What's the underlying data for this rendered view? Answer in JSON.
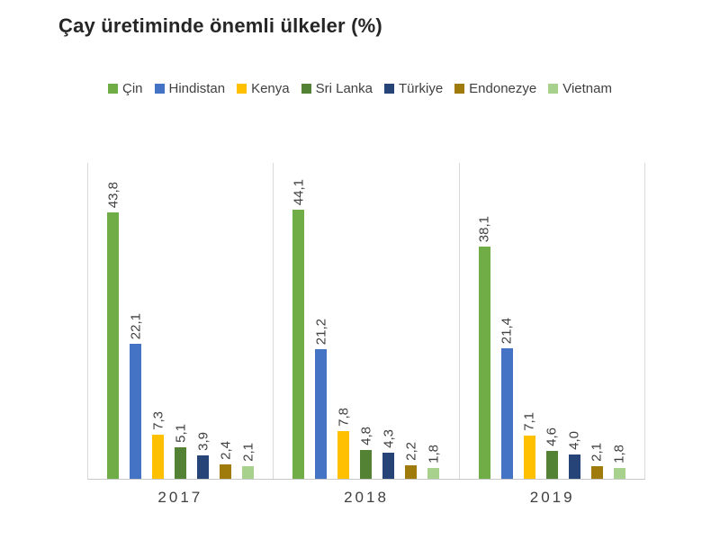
{
  "title": "Çay üretiminde önemli ülkeler (%)",
  "chart_data": {
    "type": "bar",
    "title": "Çay üretiminde önemli ülkeler (%)",
    "categories": [
      "2017",
      "2018",
      "2019"
    ],
    "series": [
      {
        "name": "Çin",
        "color": "#70AD47",
        "values": [
          43.8,
          44.1,
          38.1
        ],
        "labels": [
          "43,8",
          "44,1",
          "38,1"
        ]
      },
      {
        "name": "Hindistan",
        "color": "#4472C4",
        "values": [
          22.1,
          21.2,
          21.4
        ],
        "labels": [
          "22,1",
          "21,2",
          "21,4"
        ]
      },
      {
        "name": "Kenya",
        "color": "#FFC000",
        "values": [
          7.3,
          7.8,
          7.1
        ],
        "labels": [
          "7,3",
          "7,8",
          "7,1"
        ]
      },
      {
        "name": "Sri Lanka",
        "color": "#548235",
        "values": [
          5.1,
          4.8,
          4.6
        ],
        "labels": [
          "5,1",
          "4,8",
          "4,6"
        ]
      },
      {
        "name": "Türkiye",
        "color": "#264478",
        "values": [
          3.9,
          4.3,
          4.0
        ],
        "labels": [
          "3,9",
          "4,3",
          "4,0"
        ]
      },
      {
        "name": "Endonezye",
        "color": "#9E7B0B",
        "values": [
          2.4,
          2.2,
          2.1
        ],
        "labels": [
          "2,4",
          "2,2",
          "2,1"
        ]
      },
      {
        "name": "Vietnam",
        "color": "#A9D18E",
        "values": [
          2.1,
          1.8,
          1.8
        ],
        "labels": [
          "2,1",
          "1,8",
          "1,8"
        ]
      }
    ],
    "ylim": [
      0,
      52
    ],
    "xlabel": "",
    "ylabel": "",
    "grid": "category-separator-lines-only",
    "legend_position": "top-center",
    "value_labels": "above-bars-rotated-90",
    "decimal_separator": ",",
    "axis_line_color": "#D9D9D9",
    "label_text_color": "#404040",
    "title_text_color": "#262626"
  }
}
